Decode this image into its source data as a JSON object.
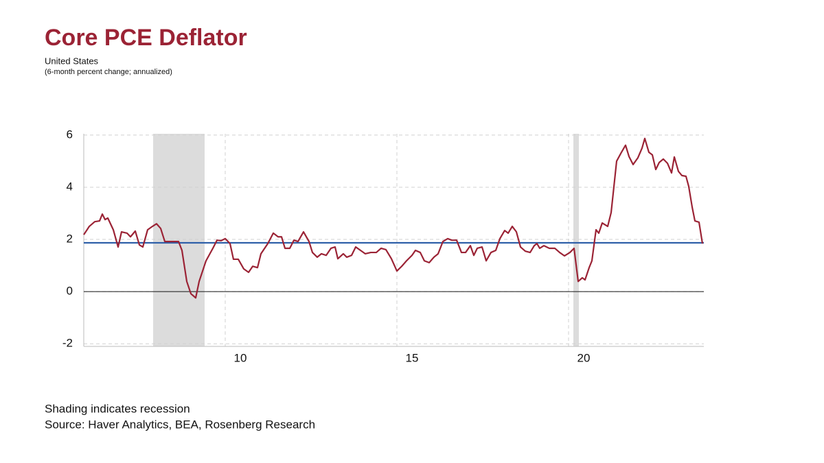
{
  "chart_data": {
    "type": "line",
    "title": "Core PCE Deflator",
    "subtitle": "United States",
    "note": "(6-month  percent change; annualized)",
    "footnotes": [
      "Shading indicates recession",
      "Source: Haver Analytics, BEA, Rosenberg Research"
    ],
    "x": [
      2005.88,
      2006.04,
      2006.2,
      2006.34,
      2006.42,
      2006.5,
      2006.58,
      2006.74,
      2006.88,
      2006.98,
      2007.14,
      2007.24,
      2007.38,
      2007.5,
      2007.6,
      2007.74,
      2007.88,
      2008,
      2008.12,
      2008.24,
      2008.44,
      2008.64,
      2008.74,
      2008.88,
      2009,
      2009.14,
      2009.24,
      2009.44,
      2009.64,
      2009.76,
      2009.88,
      2010,
      2010.14,
      2010.24,
      2010.38,
      2010.54,
      2010.68,
      2010.8,
      2010.94,
      2011.04,
      2011.24,
      2011.4,
      2011.54,
      2011.64,
      2011.74,
      2011.88,
      2012,
      2012.12,
      2012.28,
      2012.44,
      2012.54,
      2012.68,
      2012.8,
      2012.94,
      2013.08,
      2013.2,
      2013.28,
      2013.44,
      2013.54,
      2013.68,
      2013.8,
      2013.94,
      2014.08,
      2014.24,
      2014.4,
      2014.54,
      2014.68,
      2014.84,
      2015,
      2015.14,
      2015.28,
      2015.44,
      2015.54,
      2015.68,
      2015.8,
      2015.94,
      2016.08,
      2016.2,
      2016.34,
      2016.48,
      2016.6,
      2016.74,
      2016.88,
      2017,
      2017.14,
      2017.24,
      2017.34,
      2017.48,
      2017.6,
      2017.74,
      2017.88,
      2018,
      2018.14,
      2018.24,
      2018.36,
      2018.48,
      2018.6,
      2018.74,
      2018.88,
      2019,
      2019.08,
      2019.16,
      2019.28,
      2019.44,
      2019.6,
      2019.74,
      2019.88,
      2020.04,
      2020.16,
      2020.28,
      2020.4,
      2020.48,
      2020.6,
      2020.68,
      2020.8,
      2020.88,
      2020.98,
      2021.14,
      2021.24,
      2021.4,
      2021.54,
      2021.66,
      2021.76,
      2021.88,
      2022.02,
      2022.14,
      2022.22,
      2022.34,
      2022.44,
      2022.54,
      2022.64,
      2022.76,
      2022.88,
      2023,
      2023.08,
      2023.2,
      2023.3,
      2023.42,
      2023.5,
      2023.6,
      2023.68,
      2023.8,
      2023.9
    ],
    "series": [
      {
        "color": "#9b2335",
        "values": [
          2.18,
          2.5,
          2.68,
          2.71,
          2.97,
          2.76,
          2.82,
          2.37,
          1.71,
          2.29,
          2.24,
          2.1,
          2.32,
          1.79,
          1.71,
          2.37,
          2.5,
          2.6,
          2.42,
          1.92,
          1.92,
          1.92,
          1.58,
          0.39,
          -0.08,
          -0.24,
          0.39,
          1.18,
          1.66,
          1.97,
          1.95,
          2.03,
          1.84,
          1.24,
          1.24,
          0.87,
          0.74,
          0.97,
          0.92,
          1.45,
          1.84,
          2.24,
          2.1,
          2.1,
          1.66,
          1.66,
          1.97,
          1.92,
          2.29,
          1.92,
          1.5,
          1.32,
          1.45,
          1.39,
          1.66,
          1.71,
          1.26,
          1.45,
          1.32,
          1.39,
          1.71,
          1.58,
          1.45,
          1.5,
          1.5,
          1.66,
          1.61,
          1.26,
          0.79,
          0.97,
          1.18,
          1.39,
          1.58,
          1.5,
          1.18,
          1.11,
          1.32,
          1.45,
          1.92,
          2.03,
          1.97,
          1.97,
          1.5,
          1.5,
          1.76,
          1.39,
          1.66,
          1.71,
          1.18,
          1.5,
          1.58,
          2.03,
          2.34,
          2.24,
          2.5,
          2.29,
          1.71,
          1.55,
          1.5,
          1.76,
          1.84,
          1.66,
          1.76,
          1.66,
          1.66,
          1.5,
          1.37,
          1.5,
          1.66,
          0.39,
          0.53,
          0.45,
          0.92,
          1.18,
          2.37,
          2.24,
          2.63,
          2.5,
          3.03,
          5.0,
          5.34,
          5.61,
          5.18,
          4.87,
          5.13,
          5.5,
          5.87,
          5.34,
          5.24,
          4.68,
          4.95,
          5.08,
          4.92,
          4.55,
          5.16,
          4.61,
          4.45,
          4.42,
          4.03,
          3.24,
          2.71,
          2.66,
          1.84
        ]
      }
    ],
    "hline": {
      "value": 1.87,
      "color": "#2e5fa8"
    },
    "recessions": [
      {
        "start": 2007.9,
        "end": 2009.4
      },
      {
        "start": 2020.14,
        "end": 2020.3
      }
    ],
    "xlim": [
      2005.88,
      2023.94
    ],
    "xticks": [
      {
        "value": 2010,
        "label": "10"
      },
      {
        "value": 2015,
        "label": "15"
      },
      {
        "value": 2020,
        "label": "20"
      }
    ],
    "ylim": [
      -2.1,
      6.05
    ],
    "yticks": [
      -2,
      0,
      2,
      4,
      6
    ],
    "grid": true
  }
}
